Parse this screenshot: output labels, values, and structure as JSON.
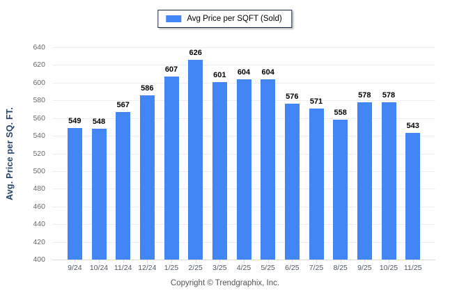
{
  "legend": {
    "label": "Avg Price per SQFT (Sold)"
  },
  "footer": {
    "text": "Copyright © Trendgraphix, Inc."
  },
  "chart_data": {
    "type": "bar",
    "title": "",
    "xlabel": "",
    "ylabel": "Avg. Price per SQ. FT.",
    "categories": [
      "9/24",
      "10/24",
      "11/24",
      "12/24",
      "1/25",
      "2/25",
      "3/25",
      "4/25",
      "5/25",
      "6/25",
      "7/25",
      "8/25",
      "9/25",
      "10/25",
      "11/25"
    ],
    "series": [
      {
        "name": "Avg Price per SQFT (Sold)",
        "values": [
          549,
          548,
          567,
          586,
          607,
          626,
          601,
          604,
          604,
          576,
          571,
          558,
          578,
          578,
          543
        ]
      }
    ],
    "ylim": [
      400,
      640
    ],
    "ytick_step": 20,
    "grid": true,
    "legend_position": "top-center",
    "colors": {
      "bar": "#4285F4",
      "gridline": "#EDEDED",
      "axis_line": "#D9D9D9",
      "y_tick_label": "#696969",
      "x_tick_label": "#4E5864",
      "ylabel": "#24466E",
      "value_label": "#000000",
      "legend_border": "#1A2742",
      "footer_text": "#545454"
    }
  }
}
